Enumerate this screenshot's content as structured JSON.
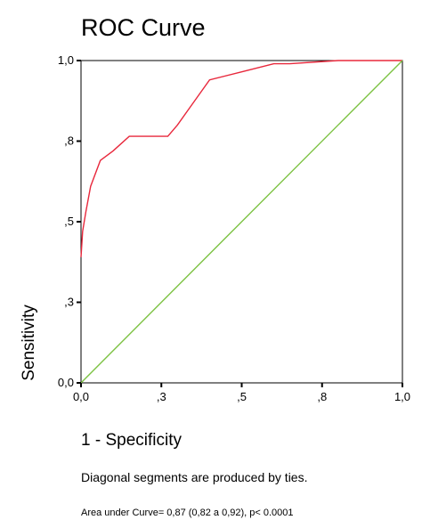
{
  "chart_data": {
    "type": "line",
    "title": "ROC Curve",
    "xlabel": "1 - Specificity",
    "ylabel": "Sensitivity",
    "xlim": [
      0,
      1
    ],
    "ylim": [
      0,
      1
    ],
    "x_ticks": [
      {
        "value": 0.0,
        "label": "0,0"
      },
      {
        "value": 0.25,
        "label": ",3"
      },
      {
        "value": 0.5,
        "label": ",5"
      },
      {
        "value": 0.75,
        "label": ",8"
      },
      {
        "value": 1.0,
        "label": "1,0"
      }
    ],
    "y_ticks": [
      {
        "value": 0.0,
        "label": "0,0"
      },
      {
        "value": 0.25,
        "label": ",3"
      },
      {
        "value": 0.5,
        "label": ",5"
      },
      {
        "value": 0.75,
        "label": ",8"
      },
      {
        "value": 1.0,
        "label": "1,0"
      }
    ],
    "grid": false,
    "series": [
      {
        "color": "#e8283c",
        "x": [
          0.0,
          0.005,
          0.015,
          0.03,
          0.06,
          0.1,
          0.15,
          0.2,
          0.25,
          0.27,
          0.3,
          0.35,
          0.4,
          0.5,
          0.6,
          0.65,
          0.8,
          0.9,
          1.0
        ],
        "y": [
          0.39,
          0.47,
          0.53,
          0.61,
          0.69,
          0.72,
          0.765,
          0.765,
          0.765,
          0.765,
          0.8,
          0.87,
          0.94,
          0.965,
          0.99,
          0.99,
          1.0,
          1.0,
          1.0
        ]
      },
      {
        "color": "#7cc242",
        "x": [
          0.0,
          1.0
        ],
        "y": [
          0.0,
          1.0
        ]
      }
    ],
    "notes": [
      "Diagonal segments are produced by ties.",
      "Area under Curve= 0,87 (0,82 a 0,92), p< 0.0001"
    ]
  }
}
